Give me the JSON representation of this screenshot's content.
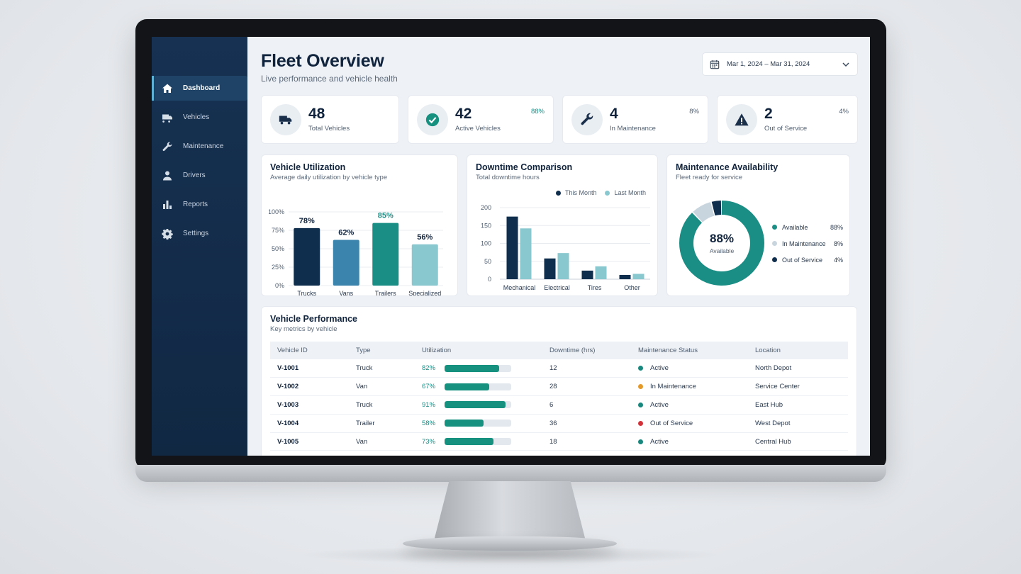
{
  "colors": {
    "sidebar": "#163152",
    "navy": "#0f2e4d",
    "blue": "#3a84ad",
    "teal": "#1a8d84",
    "light_teal": "#8ac8cf",
    "status_active": "#18887f",
    "status_maintenance": "#e49a2b",
    "status_out": "#d2333a",
    "donut_light": "#c8d5de"
  },
  "sidebar": {
    "items": [
      {
        "label": "Dashboard",
        "icon": "home-icon",
        "active": true
      },
      {
        "label": "Vehicles",
        "icon": "truck-icon",
        "active": false
      },
      {
        "label": "Maintenance",
        "icon": "wrench-icon",
        "active": false
      },
      {
        "label": "Drivers",
        "icon": "user-icon",
        "active": false
      },
      {
        "label": "Reports",
        "icon": "bar-chart-icon",
        "active": false
      },
      {
        "label": "Settings",
        "icon": "gear-icon",
        "active": false
      }
    ]
  },
  "header": {
    "title": "Fleet Overview",
    "subtitle": "Live performance and vehicle health",
    "date_range": "Mar 1, 2024 – Mar 31, 2024"
  },
  "kpis": [
    {
      "value": "48",
      "label": "Total Vehicles",
      "pct": "",
      "icon": "truck-icon"
    },
    {
      "value": "42",
      "label": "Active Vehicles",
      "pct": "88%",
      "icon": "check-circle-icon"
    },
    {
      "value": "4",
      "label": "In Maintenance",
      "pct": "8%",
      "icon": "wrench-icon"
    },
    {
      "value": "2",
      "label": "Out of Service",
      "pct": "4%",
      "icon": "warning-icon"
    }
  ],
  "utilization": {
    "title": "Vehicle Utilization",
    "subtitle": "Average daily utilization by vehicle type"
  },
  "downtime": {
    "title": "Downtime Comparison",
    "subtitle": "Total downtime hours"
  },
  "availability": {
    "title": "Maintenance Availability",
    "subtitle": "Fleet ready for service",
    "center_value": "88%",
    "center_label": "Available"
  },
  "chart_data": [
    {
      "type": "bar",
      "title": "Vehicle Utilization",
      "categories": [
        "Trucks",
        "Vans",
        "Trailers",
        "Specialized"
      ],
      "values": [
        78,
        62,
        85,
        56
      ],
      "data_labels": [
        "78%",
        "62%",
        "85%",
        "56%"
      ],
      "y_ticks": [
        "0%",
        "25%",
        "50%",
        "75%",
        "100%"
      ],
      "ylim": [
        0,
        100
      ]
    },
    {
      "type": "bar",
      "title": "Downtime Comparison",
      "categories": [
        "Mechanical",
        "Electrical",
        "Tires",
        "Other"
      ],
      "series": [
        {
          "name": "This Month",
          "values": [
            175,
            58,
            24,
            12
          ]
        },
        {
          "name": "Last Month",
          "values": [
            142,
            73,
            36,
            15
          ]
        }
      ],
      "y_ticks": [
        "0",
        "50",
        "100",
        "150",
        "200"
      ],
      "ylim": [
        0,
        200
      ],
      "legend": "top-right"
    },
    {
      "type": "pie",
      "title": "Maintenance Availability",
      "slices": [
        {
          "label": "Available",
          "value": 88,
          "display": "88%"
        },
        {
          "label": "In Maintenance",
          "value": 8,
          "display": "8%"
        },
        {
          "label": "Out of Service",
          "value": 4,
          "display": "4%"
        }
      ]
    }
  ],
  "table": {
    "title": "Vehicle Performance",
    "subtitle": "Key metrics by vehicle",
    "headers": [
      "Vehicle ID",
      "Type",
      "Utilization",
      "Downtime (hrs)",
      "Maintenance Status",
      "Location"
    ],
    "rows": [
      {
        "id": "V-1001",
        "type": "Truck",
        "util": "82%",
        "util_value": 82,
        "downtime": "12",
        "status": "Active",
        "status_key": "active",
        "location": "North Depot"
      },
      {
        "id": "V-1002",
        "type": "Van",
        "util": "67%",
        "util_value": 67,
        "downtime": "28",
        "status": "In Maintenance",
        "status_key": "maintenance",
        "location": "Service Center"
      },
      {
        "id": "V-1003",
        "type": "Truck",
        "util": "91%",
        "util_value": 91,
        "downtime": "6",
        "status": "Active",
        "status_key": "active",
        "location": "East Hub"
      },
      {
        "id": "V-1004",
        "type": "Trailer",
        "util": "58%",
        "util_value": 58,
        "downtime": "36",
        "status": "Out of Service",
        "status_key": "out",
        "location": "West Depot"
      },
      {
        "id": "V-1005",
        "type": "Van",
        "util": "73%",
        "util_value": 73,
        "downtime": "18",
        "status": "Active",
        "status_key": "active",
        "location": "Central Hub"
      }
    ]
  }
}
